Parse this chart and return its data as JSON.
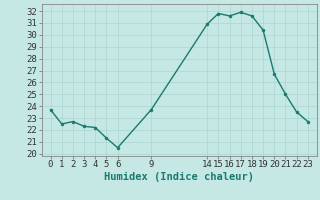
{
  "x": [
    0,
    1,
    2,
    3,
    4,
    5,
    6,
    9,
    14,
    15,
    16,
    17,
    18,
    19,
    20,
    21,
    22,
    23
  ],
  "y": [
    23.7,
    22.5,
    22.7,
    22.3,
    22.2,
    21.3,
    20.5,
    23.7,
    30.9,
    31.8,
    31.6,
    31.9,
    31.6,
    30.4,
    26.7,
    25.0,
    23.5,
    22.7
  ],
  "xticks": [
    0,
    1,
    2,
    3,
    4,
    5,
    6,
    9,
    14,
    15,
    16,
    17,
    18,
    19,
    20,
    21,
    22,
    23
  ],
  "yticks": [
    20,
    21,
    22,
    23,
    24,
    25,
    26,
    27,
    28,
    29,
    30,
    31,
    32
  ],
  "ylim": [
    19.8,
    32.6
  ],
  "xlim": [
    -0.8,
    23.8
  ],
  "xlabel": "Humidex (Indice chaleur)",
  "line_color": "#1a7a6e",
  "marker_color": "#1a7a6e",
  "bg_color": "#c5e8e5",
  "grid_color": "#aad4d0",
  "xlabel_fontsize": 7.5,
  "tick_fontsize": 6.5
}
